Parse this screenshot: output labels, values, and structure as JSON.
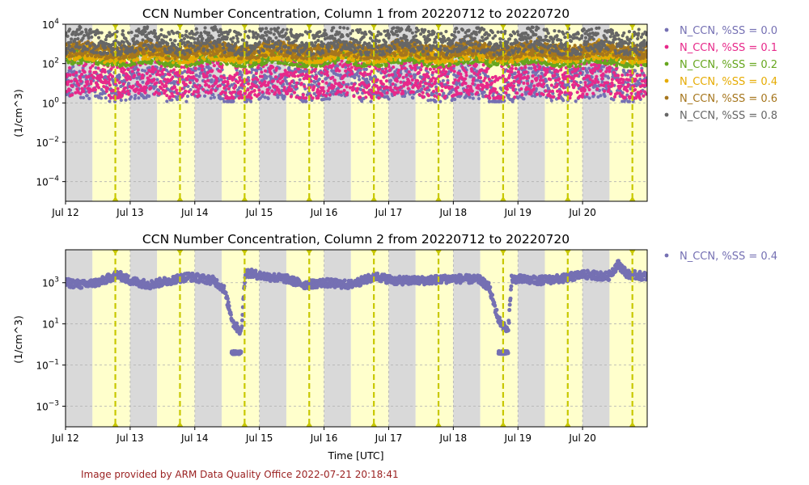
{
  "credit": "Image provided by ARM Data Quality Office 2022-07-21 20:18:41",
  "colors": {
    "day_band": "#ffffcc",
    "night_band": "#d9d9d9",
    "noon_marker": "#c8c800",
    "grid": "#b0b0b0"
  },
  "chart_data": [
    {
      "type": "scatter",
      "title": "CCN Number Concentration, Column 1 from 20220712 to 20220720",
      "xlabel": "",
      "ylabel": "(1/cm^3)",
      "yscale": "log",
      "x_range": [
        "2022-07-12 00:00",
        "2022-07-21 00:00"
      ],
      "ylim_exponent": [
        -5,
        4
      ],
      "x_ticks": [
        "Jul 12",
        "Jul 13",
        "Jul 14",
        "Jul 15",
        "Jul 16",
        "Jul 17",
        "Jul 18",
        "Jul 19",
        "Jul 20"
      ],
      "y_ticks": [
        {
          "base": "10",
          "exp": "−4",
          "value_exp": -4
        },
        {
          "base": "10",
          "exp": "−2",
          "value_exp": -2
        },
        {
          "base": "10",
          "exp": "0",
          "value_exp": 0
        },
        {
          "base": "10",
          "exp": "2",
          "value_exp": 2
        },
        {
          "base": "10",
          "exp": "4",
          "value_exp": 4
        }
      ],
      "grid": true,
      "legend_position": "right",
      "day_night": {
        "night_hours": [
          0,
          10
        ],
        "day_hours": [
          10,
          24
        ],
        "solar_noon_hour": 18.5
      },
      "series": [
        {
          "name": "N_CCN, %SS = 0.0",
          "color": "#7570b3",
          "median_log10": 1.0,
          "min_log10": 0.12,
          "max_log10": 2.0
        },
        {
          "name": "N_CCN, %SS = 0.1",
          "color": "#e7298a",
          "median_log10": 1.5,
          "min_log10": 0.3,
          "max_log10": 2.3
        },
        {
          "name": "N_CCN, %SS = 0.2",
          "color": "#66a61e",
          "median_log10": 2.3,
          "min_log10": 1.9,
          "max_log10": 2.7
        },
        {
          "name": "N_CCN, %SS = 0.4",
          "color": "#e6ab02",
          "median_log10": 2.5,
          "min_log10": 2.1,
          "max_log10": 3.0
        },
        {
          "name": "N_CCN, %SS = 0.6",
          "color": "#a6761d",
          "median_log10": 2.7,
          "min_log10": 2.3,
          "max_log10": 3.1
        },
        {
          "name": "N_CCN, %SS = 0.8",
          "color": "#666666",
          "median_log10": 2.9,
          "min_log10": 2.5,
          "max_log10": 3.9
        }
      ]
    },
    {
      "type": "scatter",
      "title": "CCN Number Concentration, Column 2 from 20220712 to 20220720",
      "xlabel": "Time [UTC]",
      "ylabel": "(1/cm^3)",
      "yscale": "log",
      "x_range": [
        "2022-07-12 00:00",
        "2022-07-21 00:00"
      ],
      "ylim_exponent": [
        -4,
        4.6
      ],
      "x_ticks": [
        "Jul 12",
        "Jul 13",
        "Jul 14",
        "Jul 15",
        "Jul 16",
        "Jul 17",
        "Jul 18",
        "Jul 19",
        "Jul 20"
      ],
      "y_ticks": [
        {
          "base": "10",
          "exp": "−3",
          "value_exp": -3
        },
        {
          "base": "10",
          "exp": "−1",
          "value_exp": -1
        },
        {
          "base": "10",
          "exp": "1",
          "value_exp": 1
        },
        {
          "base": "10",
          "exp": "3",
          "value_exp": 3
        }
      ],
      "grid": true,
      "legend_position": "right",
      "series": [
        {
          "name": "N_CCN, %SS = 0.4",
          "color": "#7570b3",
          "profile": [
            {
              "day": 0.0,
              "log10": 3.0
            },
            {
              "day": 0.3,
              "log10": 2.9
            },
            {
              "day": 0.55,
              "log10": 3.05
            },
            {
              "day": 0.8,
              "log10": 3.4
            },
            {
              "day": 1.0,
              "log10": 3.1
            },
            {
              "day": 1.3,
              "log10": 2.9
            },
            {
              "day": 1.6,
              "log10": 3.1
            },
            {
              "day": 1.9,
              "log10": 3.3
            },
            {
              "day": 2.3,
              "log10": 3.1
            },
            {
              "day": 2.45,
              "log10": 2.7
            },
            {
              "day": 2.6,
              "log10": 1.0
            },
            {
              "day": 2.72,
              "log10": 0.6
            },
            {
              "day": 2.78,
              "log10": 3.5
            },
            {
              "day": 3.1,
              "log10": 3.3
            },
            {
              "day": 3.4,
              "log10": 3.2
            },
            {
              "day": 3.7,
              "log10": 2.9
            },
            {
              "day": 4.0,
              "log10": 3.0
            },
            {
              "day": 4.4,
              "log10": 2.9
            },
            {
              "day": 4.8,
              "log10": 3.3
            },
            {
              "day": 5.1,
              "log10": 3.1
            },
            {
              "day": 5.5,
              "log10": 3.1
            },
            {
              "day": 6.0,
              "log10": 3.2
            },
            {
              "day": 6.4,
              "log10": 3.15
            },
            {
              "day": 6.55,
              "log10": 2.8
            },
            {
              "day": 6.7,
              "log10": 1.2
            },
            {
              "day": 6.85,
              "log10": 0.6
            },
            {
              "day": 6.9,
              "log10": 3.2
            },
            {
              "day": 7.3,
              "log10": 3.1
            },
            {
              "day": 7.7,
              "log10": 3.2
            },
            {
              "day": 8.0,
              "log10": 3.4
            },
            {
              "day": 8.4,
              "log10": 3.3
            },
            {
              "day": 8.55,
              "log10": 3.9
            },
            {
              "day": 8.7,
              "log10": 3.4
            },
            {
              "day": 9.0,
              "log10": 3.3
            }
          ],
          "floor_log10": -0.4
        }
      ]
    }
  ]
}
